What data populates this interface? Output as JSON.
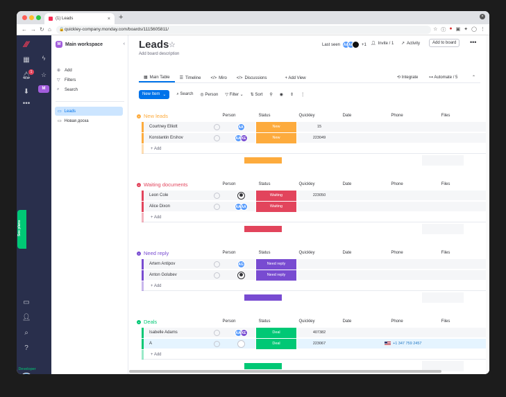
{
  "browser": {
    "tab_title": "(1) Leads",
    "url": "quickley-company.monday.com/boards/1115605811/"
  },
  "rail": {
    "notification_count": "1",
    "see_plans": "See plans",
    "avatar": "AG",
    "developer_label": "Developer"
  },
  "workspace": {
    "initial": "M",
    "name": "Main workspace",
    "add": "Add",
    "filters": "Filters",
    "search": "Search",
    "boards": [
      "Leads",
      "Новая доска"
    ]
  },
  "board": {
    "title": "Leads",
    "description": "Add board description",
    "last_seen": "Last seen",
    "last_seen_more": "+1",
    "invite": "Invite / 1",
    "activity": "Activity",
    "add_to_board": "Add to board",
    "tabs": [
      "Main Table",
      "Timeline",
      "Miro",
      "Discussions"
    ],
    "add_view": "+ Add View",
    "integrate": "Integrate",
    "automate": "Automate / 5"
  },
  "toolbar": {
    "new_item": "New Item",
    "search": "Search",
    "person": "Person",
    "filter": "Filter",
    "sort": "Sort"
  },
  "columns": {
    "person": "Person",
    "status": "Status",
    "quickley": "Quickley",
    "date": "Date",
    "phone": "Phone",
    "files": "Files"
  },
  "add_row_label": "+ Add",
  "groups": [
    {
      "name": "New leads",
      "color": "#fdab3d",
      "rows": [
        {
          "name": "Courtney Elliott",
          "status": "New",
          "quickley": "15"
        },
        {
          "name": "Konstantin Ershov",
          "status": "New",
          "quickley": "223049"
        }
      ]
    },
    {
      "name": "Waiting documents",
      "color": "#e2445c",
      "rows": [
        {
          "name": "Leon Cole",
          "status": "Waiting",
          "quickley": "223050"
        },
        {
          "name": "Alice Dixon",
          "status": "Waiting",
          "quickley": ""
        }
      ]
    },
    {
      "name": "Need reply",
      "color": "#784bd1",
      "rows": [
        {
          "name": "Artem Antipov",
          "status": "Need reply",
          "quickley": ""
        },
        {
          "name": "Anton Golubev",
          "status": "Need reply",
          "quickley": ""
        }
      ]
    },
    {
      "name": "Deals",
      "color": "#00c875",
      "rows": [
        {
          "name": "Isabelle Adams",
          "status": "Deal",
          "quickley": "407382"
        },
        {
          "name": "A",
          "status": "Deal",
          "quickley": "223067",
          "phone": "+1 347 759 2457"
        }
      ]
    }
  ],
  "avatars": {
    "AA": "AA",
    "KE": "KE",
    "AG": "AG"
  }
}
